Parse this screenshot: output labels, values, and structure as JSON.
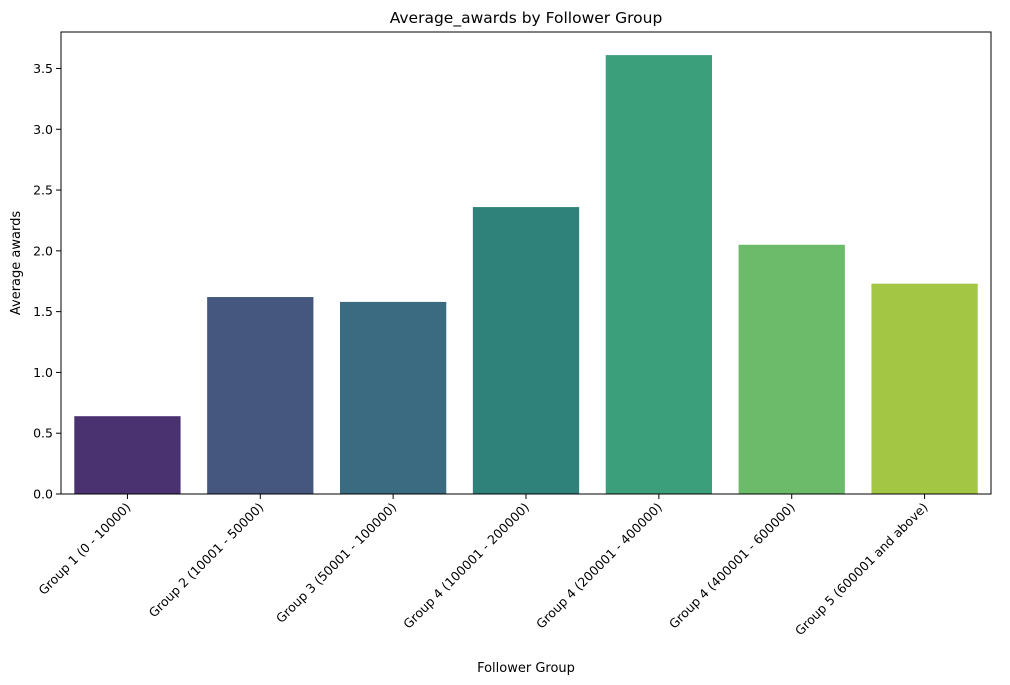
{
  "chart_data": {
    "type": "bar",
    "title": "Average_awards by Follower Group",
    "xlabel": "Follower Group",
    "ylabel": "Average awards",
    "categories": [
      "Group 1 (0 - 10000)",
      "Group 2 (10001 - 50000)",
      "Group 3 (50001 - 100000)",
      "Group 4 (100001 - 200000)",
      "Group 4 (200001 - 400000)",
      "Group 4 (400001 - 600000)",
      "Group 5 (600001 and above)"
    ],
    "values": [
      0.64,
      1.62,
      1.58,
      2.36,
      3.61,
      2.05,
      1.73
    ],
    "colors": [
      "#4a3271",
      "#45577f",
      "#3a6b80",
      "#2e8279",
      "#3b9f7c",
      "#6cbb6a",
      "#a3c644"
    ],
    "ylim": [
      0,
      3.8
    ],
    "yticks": [
      "0.0",
      "0.5",
      "1.0",
      "1.5",
      "2.0",
      "2.5",
      "3.0",
      "3.5"
    ],
    "grid": false,
    "legend": "none"
  }
}
